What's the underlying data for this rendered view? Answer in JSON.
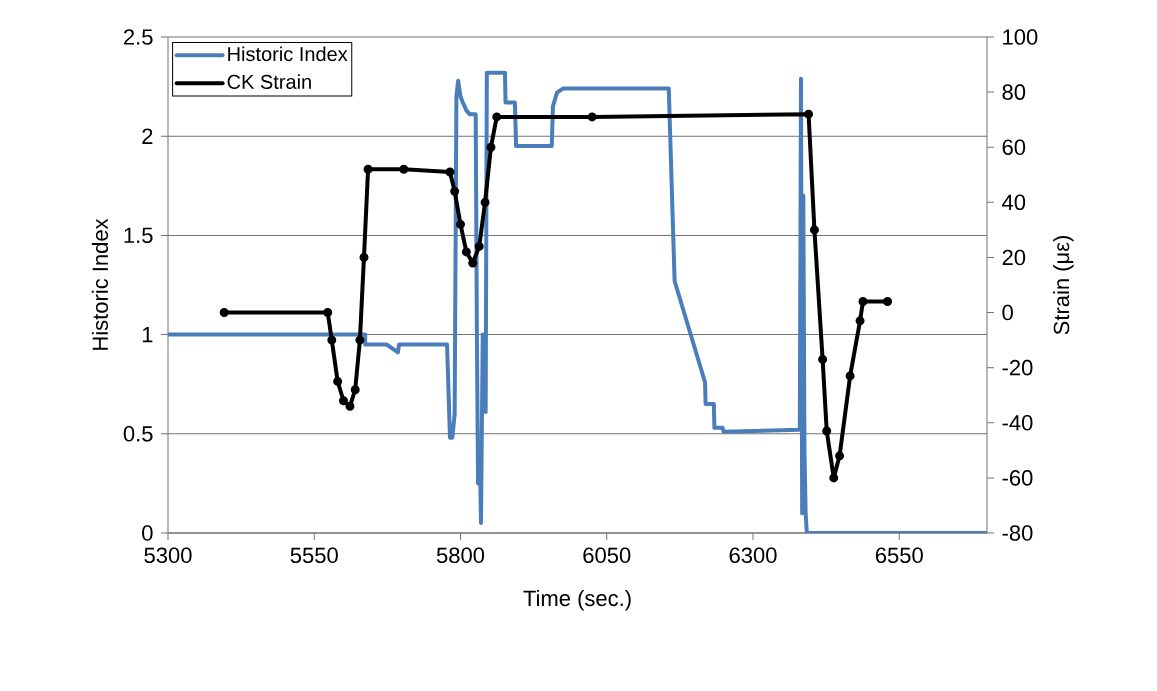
{
  "chart_data": {
    "type": "line",
    "xlabel": "Time (sec.)",
    "ylabel": "Historic Index",
    "y2label": "Strain (με)",
    "xlim": [
      5300,
      6700
    ],
    "xticks": [
      5300,
      5550,
      5800,
      6050,
      6300,
      6550
    ],
    "ylim": [
      0,
      2.5
    ],
    "yticks": [
      0,
      0.5,
      1,
      1.5,
      2,
      2.5
    ],
    "y2lim": [
      -80,
      100
    ],
    "y2ticks": [
      -80,
      -60,
      -40,
      -20,
      0,
      20,
      40,
      60,
      80,
      100
    ],
    "grid": "y",
    "legend": "top left",
    "series": [
      {
        "name": "Historic Index",
        "color": "#4a7ebb",
        "marker": "none",
        "x": [
          5300,
          5637,
          5637,
          5674,
          5693,
          5695,
          5777,
          5782,
          5786,
          5790,
          5793,
          5796,
          5800,
          5804,
          5810,
          5816,
          5826,
          5828,
          5830,
          5833,
          5835,
          5838,
          5843,
          5845,
          5876,
          5877,
          5893,
          5895,
          5956,
          5958,
          5965,
          5975,
          6156,
          6166,
          6218,
          6219,
          6233,
          6234,
          6248,
          6250,
          6380,
          6382,
          6384,
          6386,
          6388,
          6390,
          6392,
          6700
        ],
        "values": [
          1,
          1,
          0.95,
          0.95,
          0.91,
          0.95,
          0.95,
          0.48,
          0.48,
          0.6,
          2.2,
          2.28,
          2.2,
          2.17,
          2.13,
          2.11,
          2.11,
          1.0,
          0.25,
          0.4,
          0.05,
          1.0,
          0.61,
          2.32,
          2.32,
          2.17,
          2.17,
          1.95,
          1.95,
          2.15,
          2.22,
          2.24,
          2.24,
          1.27,
          0.76,
          0.65,
          0.65,
          0.53,
          0.53,
          0.51,
          0.52,
          2.29,
          0.1,
          1.7,
          0.4,
          0.1,
          0,
          0
        ]
      },
      {
        "name": "CK Strain",
        "color": "#000000",
        "axis": "y2",
        "marker": "circle",
        "x": [
          5396,
          5573,
          5580,
          5590,
          5600,
          5611,
          5620,
          5628,
          5635,
          5642,
          5703,
          5782,
          5790,
          5800,
          5810,
          5821,
          5832,
          5842,
          5852,
          5862,
          6025,
          6395,
          6405,
          6419,
          6426,
          6438,
          6448,
          6466,
          6483,
          6488,
          6530
        ],
        "values": [
          0,
          0,
          -10,
          -25,
          -32,
          -34,
          -28,
          -10,
          20,
          52,
          52,
          51,
          44,
          32,
          22,
          18,
          24,
          40,
          60,
          71,
          71,
          72,
          30,
          -17,
          -43,
          -60,
          -52,
          -23,
          -3,
          4,
          4
        ]
      }
    ]
  }
}
